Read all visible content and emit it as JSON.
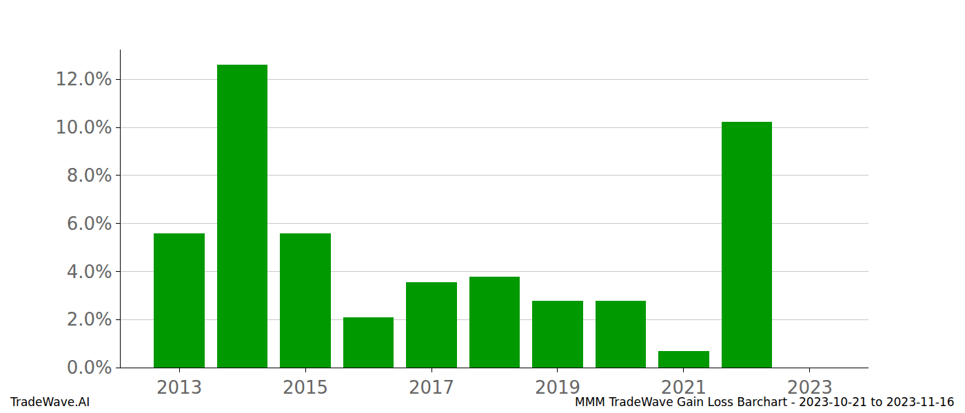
{
  "chart_data": {
    "type": "bar",
    "categories": [
      "2013",
      null,
      "2015",
      null,
      "2017",
      null,
      "2019",
      null,
      "2021",
      null,
      "2023"
    ],
    "values": [
      5.58,
      12.6,
      5.6,
      2.1,
      3.55,
      3.78,
      2.78,
      2.78,
      0.68,
      10.22,
      null
    ],
    "color": "#009900",
    "ylim": [
      0,
      13.24
    ],
    "yticks": [
      {
        "value": 0,
        "label": "0.0%"
      },
      {
        "value": 2,
        "label": "2.0%"
      },
      {
        "value": 4,
        "label": "4.0%"
      },
      {
        "value": 6,
        "label": "6.0%"
      },
      {
        "value": 8,
        "label": "8.0%"
      },
      {
        "value": 10,
        "label": "10.0%"
      },
      {
        "value": 12,
        "label": "12.0%"
      }
    ],
    "grid": true,
    "annotations": [
      "TradeWave.AI",
      "MMM TradeWave Gain Loss Barchart - 2023-10-21 to 2023-11-16"
    ]
  }
}
